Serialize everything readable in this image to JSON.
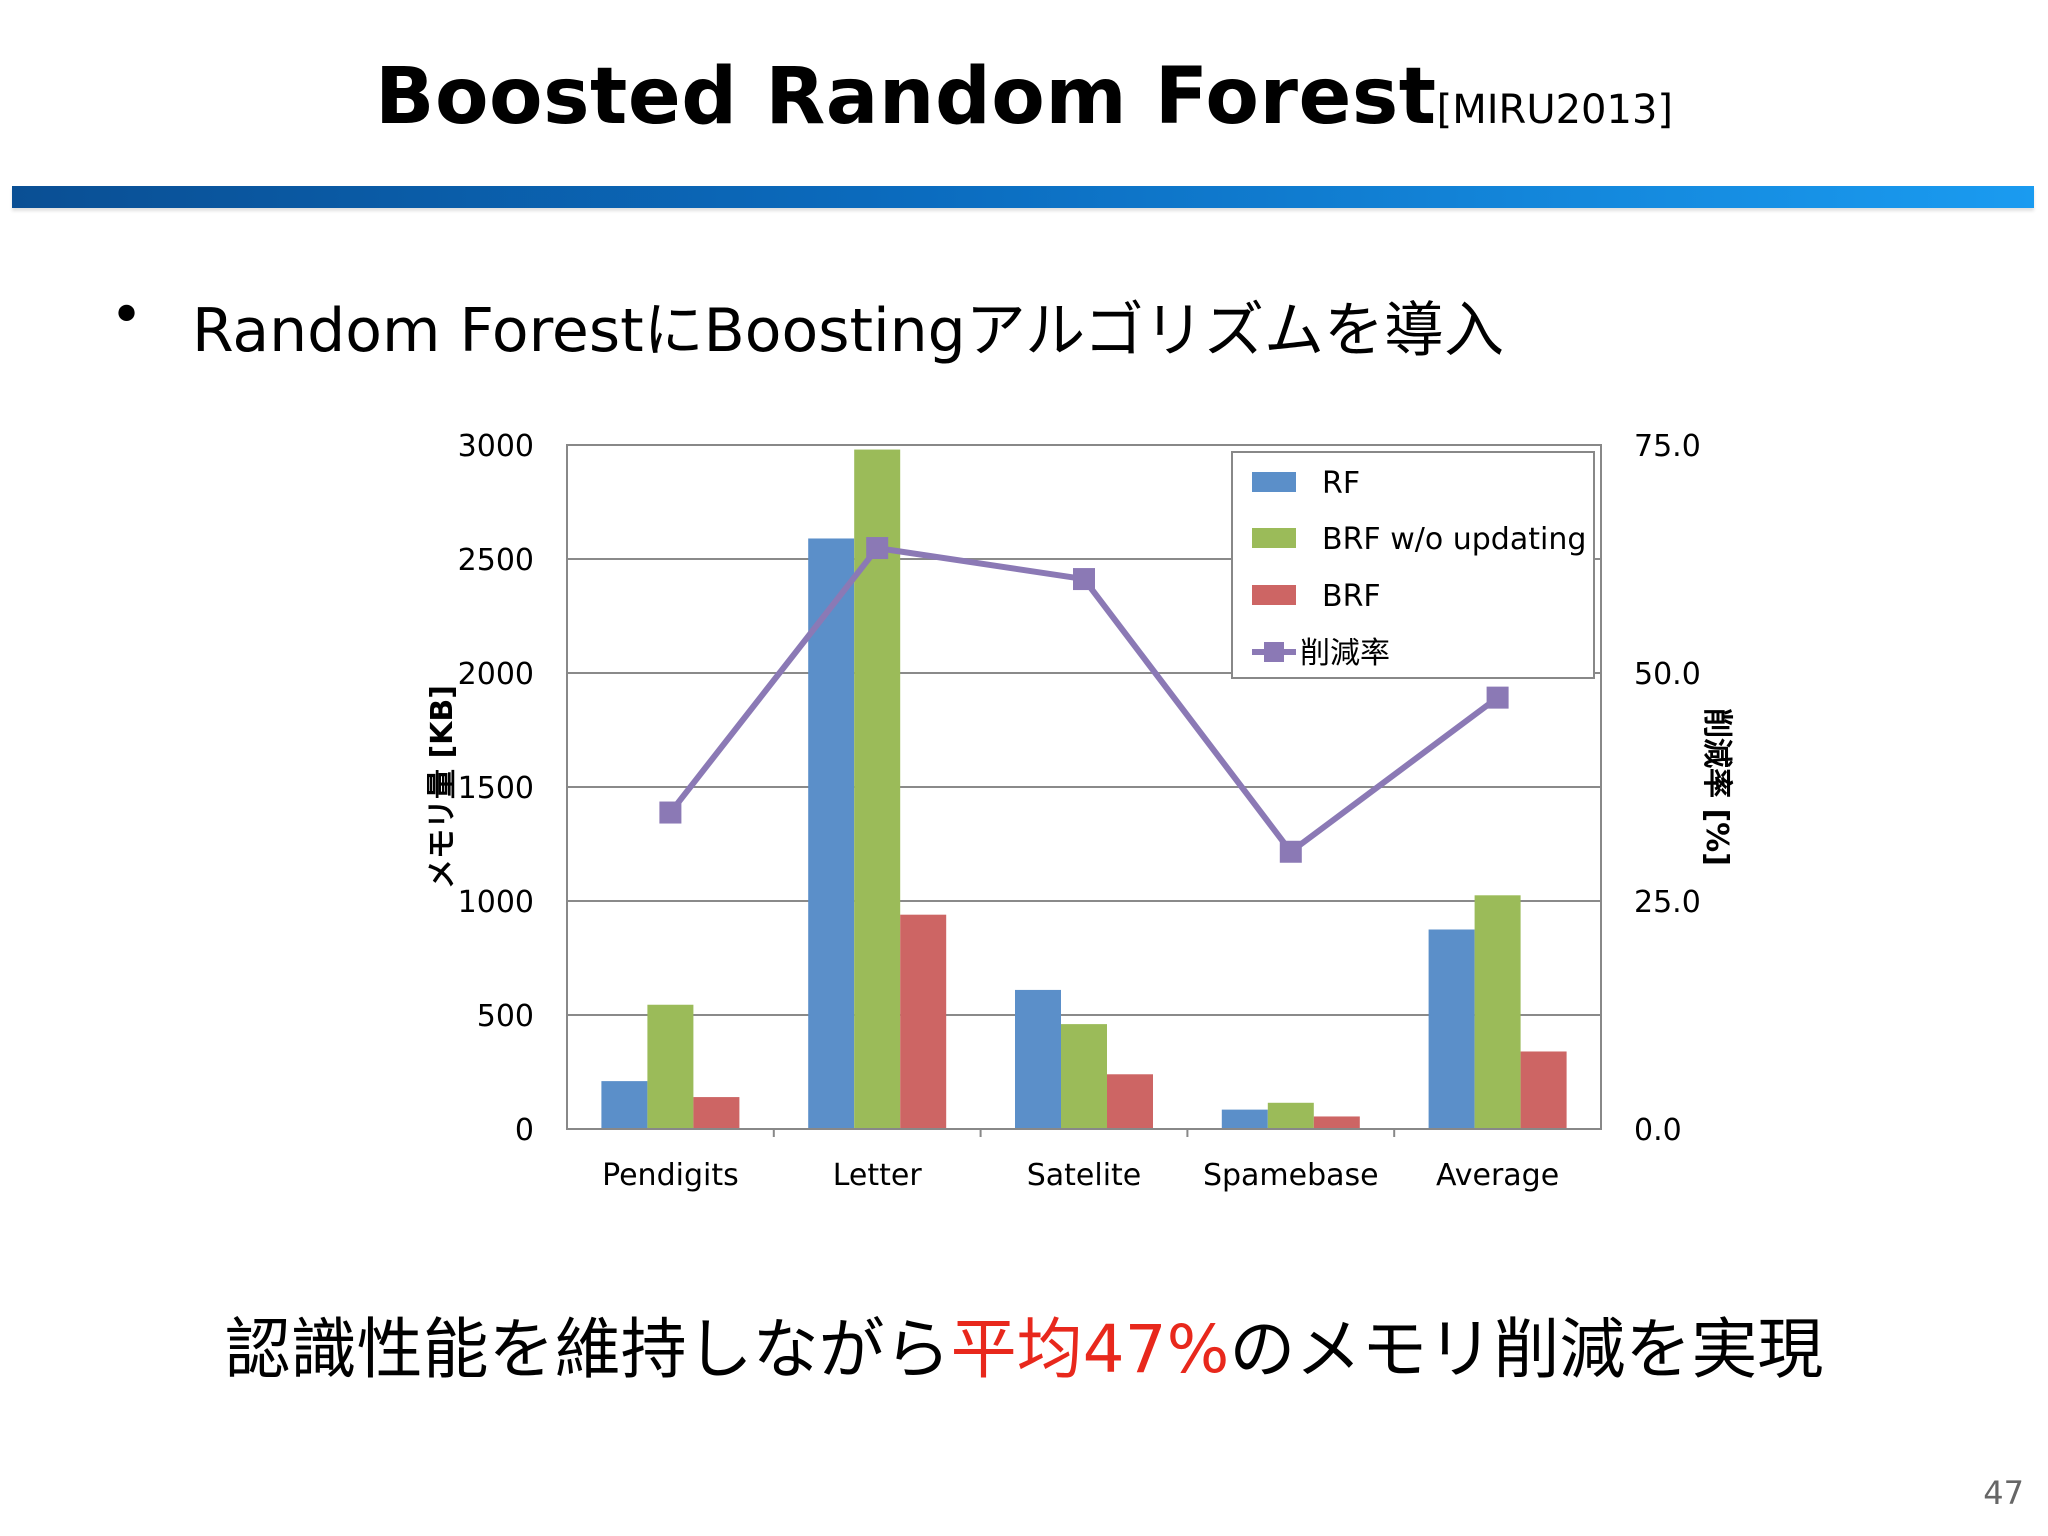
{
  "slide": {
    "title": "Boosted Random Forest",
    "title_ref": "[MIRU2013]",
    "bullet_symbol": "•",
    "bullet_text": "Random ForestにBoostingアルゴリズムを導入",
    "conclusion_pre": "認識性能を維持しながら",
    "conclusion_highlight": "平均47%",
    "conclusion_post": "のメモリ削減を実現",
    "page_number": "47",
    "highlight_color": "#e8281c"
  },
  "chart_data": {
    "type": "bar",
    "categories": [
      "Pendigits",
      "Letter",
      "Satelite",
      "Spamebase",
      "Average"
    ],
    "series": [
      {
        "name": "RF",
        "type": "bar",
        "axis": "left",
        "color": "#5b8fc9",
        "values": [
          210,
          2590,
          610,
          85,
          875
        ]
      },
      {
        "name": "BRF w/o updating",
        "type": "bar",
        "axis": "left",
        "color": "#9bbb59",
        "values": [
          545,
          2980,
          460,
          115,
          1025
        ]
      },
      {
        "name": "BRF",
        "type": "bar",
        "axis": "left",
        "color": "#cd6564",
        "values": [
          140,
          940,
          240,
          55,
          340
        ]
      },
      {
        "name": "削減率",
        "type": "line",
        "axis": "right",
        "color": "#8b79b5",
        "values": [
          34.7,
          63.7,
          60.3,
          30.4,
          47.3
        ]
      }
    ],
    "ylabel": "メモリ量 [KB]",
    "y2label": "削減率 [%]",
    "ylim": [
      0,
      3000
    ],
    "y2lim": [
      0,
      75
    ],
    "yticks": [
      "0",
      "500",
      "1000",
      "1500",
      "2000",
      "2500",
      "3000"
    ],
    "y2ticks": [
      "0.0",
      "25.0",
      "50.0",
      "75.0"
    ],
    "grid": true,
    "legend_position": "top-right"
  }
}
